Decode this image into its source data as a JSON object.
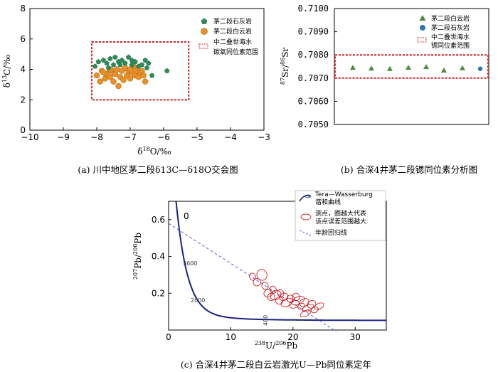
{
  "chart_data": [
    {
      "id": "a",
      "type": "scatter",
      "xlabel": "δ18O/‰",
      "ylabel": "δ13C/‰",
      "xlim": [
        -10,
        -3
      ],
      "ylim": [
        0,
        8
      ],
      "xticks": [
        "−10",
        "−9",
        "−8",
        "−7",
        "−6",
        "−5",
        "−4",
        "−3"
      ],
      "yticks": [
        "0",
        "2",
        "4",
        "6",
        "8"
      ],
      "caption": "(a) 川中地区茅二段δ13C—δ18O交会图",
      "legend": [
        "茅二段石灰岩",
        "茅二段白云岩",
        "中二叠世海水",
        "碳氧同位素范围"
      ],
      "range_box": {
        "x": [
          -8.15,
          -5.25
        ],
        "y": [
          2.0,
          5.8
        ]
      },
      "colors": {
        "limestone": "#2e8b57",
        "dolomite": "#e8902a",
        "box": "#cc2222"
      },
      "series": [
        {
          "name": "茅二段石灰岩",
          "marker": "pentagon",
          "points": [
            [
              -8.05,
              4.2
            ],
            [
              -7.95,
              4.5
            ],
            [
              -7.8,
              4.6
            ],
            [
              -7.7,
              4.4
            ],
            [
              -7.6,
              4.7
            ],
            [
              -7.5,
              4.3
            ],
            [
              -7.45,
              4.8
            ],
            [
              -7.35,
              4.5
            ],
            [
              -7.25,
              4.6
            ],
            [
              -7.15,
              4.4
            ],
            [
              -7.05,
              4.8
            ],
            [
              -6.95,
              4.6
            ],
            [
              -6.85,
              4.5
            ],
            [
              -6.75,
              4.2
            ],
            [
              -6.65,
              4.3
            ],
            [
              -6.55,
              4.6
            ],
            [
              -6.5,
              4.1
            ],
            [
              -6.45,
              4.4
            ],
            [
              -6.35,
              3.6
            ],
            [
              -5.9,
              3.9
            ],
            [
              -7.65,
              4.1
            ],
            [
              -7.3,
              4.3
            ],
            [
              -6.95,
              4.3
            ]
          ]
        },
        {
          "name": "茅二段白云岩",
          "marker": "circle",
          "points": [
            [
              -8.0,
              3.6
            ],
            [
              -7.9,
              3.2
            ],
            [
              -7.85,
              3.9
            ],
            [
              -7.75,
              3.4
            ],
            [
              -7.7,
              3.7
            ],
            [
              -7.6,
              3.5
            ],
            [
              -7.55,
              3.9
            ],
            [
              -7.5,
              3.2
            ],
            [
              -7.45,
              3.7
            ],
            [
              -7.4,
              4.0
            ],
            [
              -7.3,
              3.5
            ],
            [
              -7.25,
              3.9
            ],
            [
              -7.2,
              3.3
            ],
            [
              -7.15,
              4.1
            ],
            [
              -7.1,
              3.6
            ],
            [
              -7.05,
              3.9
            ],
            [
              -7.0,
              3.4
            ],
            [
              -6.95,
              3.8
            ],
            [
              -6.9,
              4.2
            ],
            [
              -6.85,
              3.6
            ],
            [
              -6.8,
              3.9
            ],
            [
              -6.75,
              3.5
            ],
            [
              -6.7,
              3.8
            ],
            [
              -6.6,
              3.6
            ],
            [
              -6.55,
              3.2
            ],
            [
              -7.35,
              2.9
            ],
            [
              -7.8,
              3.8
            ],
            [
              -7.0,
              4.0
            ],
            [
              -7.6,
              4.0
            ],
            [
              -6.65,
              3.9
            ]
          ]
        }
      ]
    },
    {
      "id": "b",
      "type": "scatter",
      "ylabel": "87Sr/86Sr",
      "ylim": [
        0.705,
        0.71
      ],
      "yticks": [
        "0.7050",
        "0.7060",
        "0.7070",
        "0.7080",
        "0.7090",
        "0.7100"
      ],
      "caption": "(b) 合深4井茅二段锶同位素分析图",
      "legend": [
        "茅二段白云岩",
        "茅二段石灰岩",
        "中二叠世海水",
        "锶同位素范围"
      ],
      "range_box": {
        "y": [
          0.707,
          0.708
        ]
      },
      "series": [
        {
          "name": "茅二段白云岩",
          "marker": "triangle",
          "values": [
            0.70745,
            0.70742,
            0.7074,
            0.70745,
            0.70748,
            0.70733,
            0.70743
          ]
        },
        {
          "name": "茅二段石灰岩",
          "marker": "circle",
          "values": [
            0.7074
          ]
        }
      ]
    },
    {
      "id": "c",
      "type": "scatter",
      "xlabel": "238U/206Pb",
      "ylabel": "207Pb/206Pb",
      "xlim": [
        0,
        35
      ],
      "ylim": [
        0,
        0.7
      ],
      "xticks": [
        "0",
        "10",
        "20",
        "30"
      ],
      "yticks": [
        "0.2",
        "0.4",
        "0.6"
      ],
      "caption": "(c) 合深4井茅二段白云岩激光U—Pb同位素定年",
      "legend": [
        "Tera—Wasserburg",
        "谐和曲线",
        "测点，圈越大代表",
        "该点误差范围越大",
        "年龄回归线"
      ],
      "curve_labels": [
        "3600",
        "2000",
        "400",
        "0"
      ],
      "regression": {
        "x0": 0,
        "y0": 0.58,
        "slope": -0.0218
      },
      "points": [
        [
          13.5,
          0.29,
          0.5,
          0.02
        ],
        [
          14.2,
          0.26,
          0.6,
          0.02
        ],
        [
          15.0,
          0.3,
          0.8,
          0.03
        ],
        [
          15.5,
          0.24,
          0.5,
          0.02
        ],
        [
          16.0,
          0.2,
          0.7,
          0.02
        ],
        [
          16.5,
          0.18,
          0.6,
          0.02
        ],
        [
          17.2,
          0.19,
          0.9,
          0.025
        ],
        [
          17.8,
          0.16,
          0.6,
          0.02
        ],
        [
          18.5,
          0.18,
          0.7,
          0.02
        ],
        [
          19.0,
          0.15,
          1.0,
          0.02
        ],
        [
          19.6,
          0.17,
          0.6,
          0.02
        ],
        [
          20.2,
          0.14,
          0.8,
          0.02
        ],
        [
          20.8,
          0.16,
          1.1,
          0.02
        ],
        [
          21.3,
          0.13,
          0.6,
          0.015
        ],
        [
          21.8,
          0.15,
          0.8,
          0.02
        ],
        [
          22.4,
          0.12,
          1.0,
          0.015
        ],
        [
          23.0,
          0.14,
          0.7,
          0.02
        ],
        [
          23.5,
          0.11,
          0.6,
          0.015
        ],
        [
          22.0,
          0.09,
          0.9,
          0.015
        ],
        [
          24.2,
          0.13,
          0.8,
          0.015
        ],
        [
          18.0,
          0.2,
          0.5,
          0.02
        ],
        [
          16.8,
          0.22,
          0.5,
          0.02
        ],
        [
          20.5,
          0.18,
          0.6,
          0.02
        ]
      ]
    }
  ]
}
